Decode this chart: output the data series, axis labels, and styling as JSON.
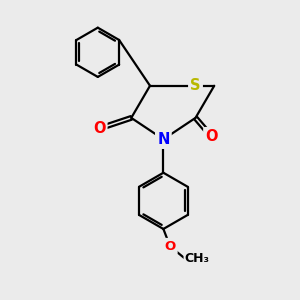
{
  "bg_color": "#ebebeb",
  "atom_colors": {
    "S": "#b8b800",
    "N": "#0000ff",
    "O": "#ff0000",
    "C": "#000000"
  },
  "bond_color": "#000000",
  "bond_width": 1.6,
  "font_size": 10.5
}
